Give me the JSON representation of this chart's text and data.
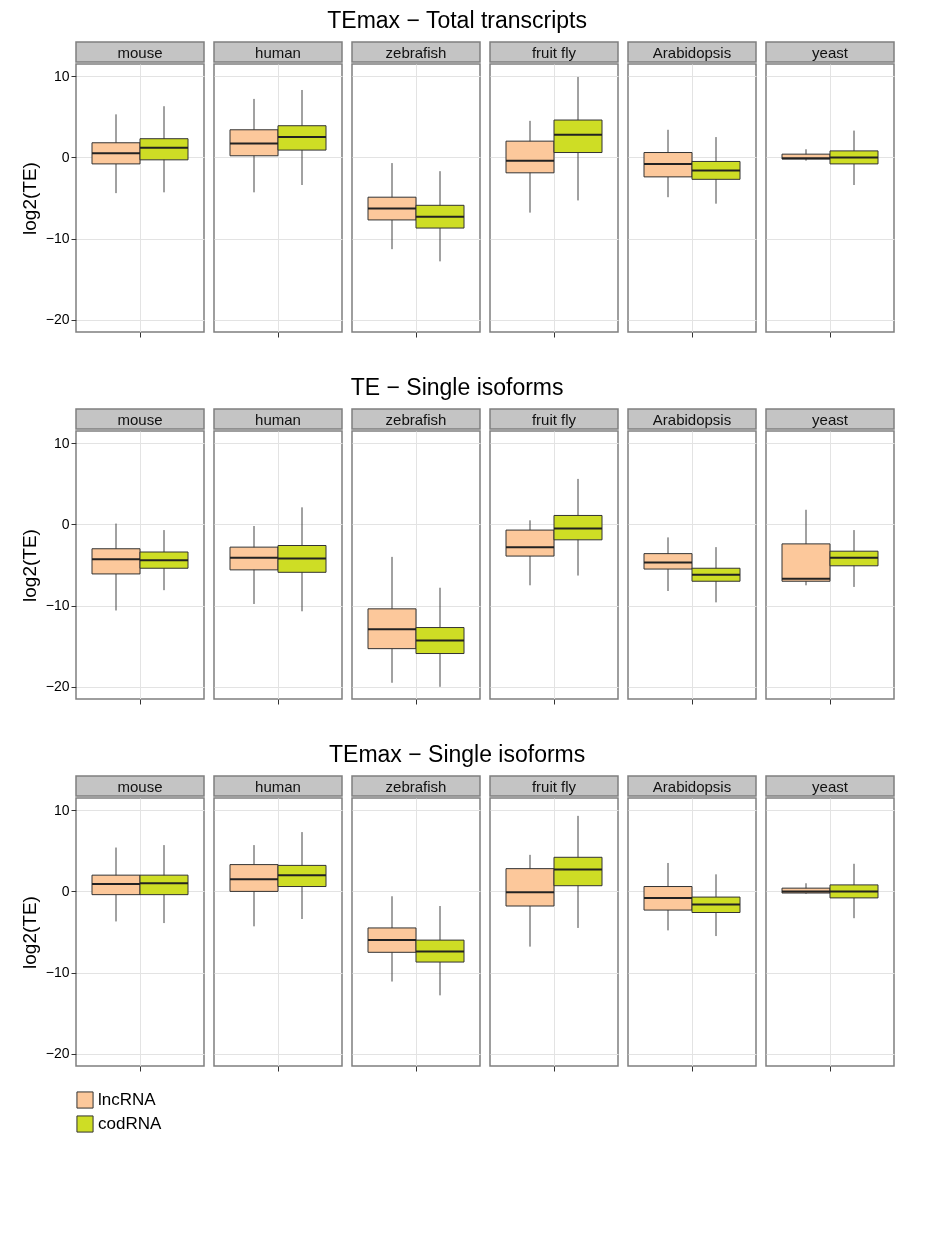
{
  "chart_data": [
    {
      "type": "box",
      "title": "TEmax − Total transcripts",
      "ylabel": "log2(TE)",
      "categories": [
        "mouse",
        "human",
        "zebrafish",
        "fruit fly",
        "Arabidopsis",
        "yeast"
      ],
      "ylim": [
        -21.5,
        11.5
      ],
      "yticks": [
        -20,
        -10,
        0,
        10
      ],
      "grid": true,
      "series": [
        {
          "color": "#fcc89b",
          "boxes": [
            {
              "low": -4.4,
              "q1": -0.8,
              "median": 0.5,
              "q3": 1.8,
              "high": 5.3
            },
            {
              "low": -4.3,
              "q1": 0.2,
              "median": 1.7,
              "q3": 3.4,
              "high": 7.2
            },
            {
              "low": -11.3,
              "q1": -7.7,
              "median": -6.3,
              "q3": -4.9,
              "high": -0.7
            },
            {
              "low": -6.8,
              "q1": -1.9,
              "median": -0.4,
              "q3": 2.0,
              "high": 4.5
            },
            {
              "low": -4.9,
              "q1": -2.4,
              "median": -0.8,
              "q3": 0.6,
              "high": 3.4
            },
            {
              "low": -0.4,
              "q1": -0.2,
              "median": -0.1,
              "q3": 0.4,
              "high": 1.0
            }
          ]
        },
        {
          "color": "#cedd25",
          "boxes": [
            {
              "low": -4.3,
              "q1": -0.3,
              "median": 1.2,
              "q3": 2.3,
              "high": 6.3
            },
            {
              "low": -3.4,
              "q1": 0.9,
              "median": 2.5,
              "q3": 3.9,
              "high": 8.3
            },
            {
              "low": -12.8,
              "q1": -8.7,
              "median": -7.3,
              "q3": -5.9,
              "high": -1.7
            },
            {
              "low": -5.3,
              "q1": 0.6,
              "median": 2.8,
              "q3": 4.6,
              "high": 9.9
            },
            {
              "low": -5.7,
              "q1": -2.7,
              "median": -1.6,
              "q3": -0.5,
              "high": 2.5
            },
            {
              "low": -3.4,
              "q1": -0.8,
              "median": 0.0,
              "q3": 0.8,
              "high": 3.3
            }
          ]
        }
      ]
    },
    {
      "type": "box",
      "title": "TE − Single isoforms",
      "ylabel": "log2(TE)",
      "categories": [
        "mouse",
        "human",
        "zebrafish",
        "fruit fly",
        "Arabidopsis",
        "yeast"
      ],
      "ylim": [
        -21.5,
        11.5
      ],
      "yticks": [
        -20,
        -10,
        0,
        10
      ],
      "grid": true,
      "series": [
        {
          "color": "#fcc89b",
          "boxes": [
            {
              "low": -10.6,
              "q1": -6.1,
              "median": -4.3,
              "q3": -3.0,
              "high": 0.1
            },
            {
              "low": -9.8,
              "q1": -5.6,
              "median": -4.1,
              "q3": -2.8,
              "high": -0.2
            },
            {
              "low": -19.5,
              "q1": -15.3,
              "median": -12.9,
              "q3": -10.4,
              "high": -4.0
            },
            {
              "low": -7.5,
              "q1": -3.9,
              "median": -2.8,
              "q3": -0.7,
              "high": 0.5
            },
            {
              "low": -8.2,
              "q1": -5.5,
              "median": -4.7,
              "q3": -3.6,
              "high": -1.6
            },
            {
              "low": -7.5,
              "q1": -7.0,
              "median": -6.7,
              "q3": -2.4,
              "high": 1.8
            }
          ]
        },
        {
          "color": "#cedd25",
          "boxes": [
            {
              "low": -8.1,
              "q1": -5.4,
              "median": -4.4,
              "q3": -3.4,
              "high": -0.7
            },
            {
              "low": -10.7,
              "q1": -5.9,
              "median": -4.2,
              "q3": -2.6,
              "high": 2.1
            },
            {
              "low": -20.0,
              "q1": -15.9,
              "median": -14.3,
              "q3": -12.7,
              "high": -7.8
            },
            {
              "low": -6.3,
              "q1": -1.9,
              "median": -0.5,
              "q3": 1.1,
              "high": 5.6
            },
            {
              "low": -9.6,
              "q1": -7.0,
              "median": -6.2,
              "q3": -5.4,
              "high": -2.8
            },
            {
              "low": -7.7,
              "q1": -5.1,
              "median": -4.1,
              "q3": -3.3,
              "high": -0.7
            }
          ]
        }
      ]
    },
    {
      "type": "box",
      "title": "TEmax − Single isoforms",
      "ylabel": "log2(TE)",
      "categories": [
        "mouse",
        "human",
        "zebrafish",
        "fruit fly",
        "Arabidopsis",
        "yeast"
      ],
      "ylim": [
        -21.5,
        11.5
      ],
      "yticks": [
        -20,
        -10,
        0,
        10
      ],
      "grid": true,
      "legend": "bottom",
      "series": [
        {
          "name": "lncRNA",
          "color": "#fcc89b",
          "boxes": [
            {
              "low": -3.7,
              "q1": -0.4,
              "median": 0.9,
              "q3": 2.0,
              "high": 5.4
            },
            {
              "low": -4.3,
              "q1": 0.0,
              "median": 1.5,
              "q3": 3.3,
              "high": 5.7
            },
            {
              "low": -11.1,
              "q1": -7.5,
              "median": -6.0,
              "q3": -4.5,
              "high": -0.6
            },
            {
              "low": -6.8,
              "q1": -1.8,
              "median": -0.1,
              "q3": 2.8,
              "high": 4.5
            },
            {
              "low": -4.8,
              "q1": -2.3,
              "median": -0.8,
              "q3": 0.6,
              "high": 3.5
            },
            {
              "low": -0.3,
              "q1": -0.2,
              "median": 0.0,
              "q3": 0.4,
              "high": 1.0
            }
          ]
        },
        {
          "name": "codRNA",
          "color": "#cedd25",
          "boxes": [
            {
              "low": -3.9,
              "q1": -0.4,
              "median": 1.0,
              "q3": 2.0,
              "high": 5.7
            },
            {
              "low": -3.4,
              "q1": 0.6,
              "median": 2.0,
              "q3": 3.2,
              "high": 7.3
            },
            {
              "low": -12.8,
              "q1": -8.7,
              "median": -7.4,
              "q3": -6.0,
              "high": -1.8
            },
            {
              "low": -4.5,
              "q1": 0.7,
              "median": 2.7,
              "q3": 4.2,
              "high": 9.3
            },
            {
              "low": -5.5,
              "q1": -2.6,
              "median": -1.6,
              "q3": -0.7,
              "high": 2.1
            },
            {
              "low": -3.3,
              "q1": -0.8,
              "median": 0.0,
              "q3": 0.8,
              "high": 3.4
            }
          ]
        }
      ]
    }
  ]
}
